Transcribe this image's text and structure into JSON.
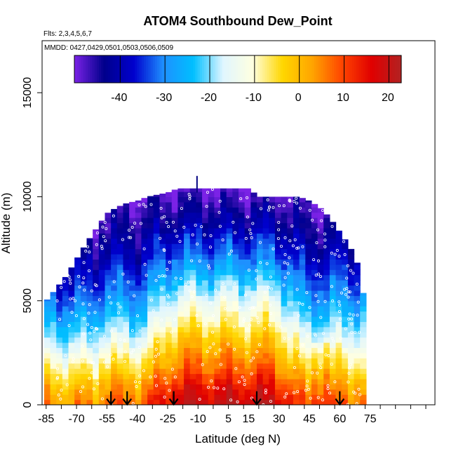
{
  "chart_data": {
    "type": "heatmap",
    "title": "ATOM4 Southbound Dew_Point",
    "flights_note": "Flts: 2,3,4,5,6,7",
    "dates_note": "MMDD: 0427,0429,0501,0503,0506,0509",
    "xlabel": "Latitude (deg N)",
    "ylabel": "Altitude (m)",
    "x_ticks": [
      -85,
      -70,
      -55,
      -40,
      -25,
      -10,
      5,
      15,
      30,
      45,
      60,
      75
    ],
    "x_tick_labels": [
      "-85",
      "-70",
      "-55",
      "-40",
      "-25",
      "-10",
      "5",
      "15",
      "30",
      "45",
      "60",
      "75"
    ],
    "y_ticks": [
      0,
      5000,
      10000,
      15000
    ],
    "y_tick_labels": [
      "0",
      "5000",
      "10000",
      "15000"
    ],
    "xlim": [
      -87,
      107
    ],
    "ylim": [
      0,
      17500
    ],
    "colorbar": {
      "range": [
        -50,
        23
      ],
      "ticks": [
        -40,
        -30,
        -20,
        -10,
        0,
        10,
        20
      ],
      "tick_labels": [
        "-40",
        "-30",
        "-20",
        "-10",
        "0",
        "10",
        "20"
      ],
      "colors": [
        "#7b22e6",
        "#00008b",
        "#0000cd",
        "#1e90ff",
        "#00bfff",
        "#e0f6ff",
        "#ffffe0",
        "#ffd700",
        "#ffa500",
        "#ff4500",
        "#e00000",
        "#b22222"
      ]
    },
    "envelope": {
      "lat": [
        -85,
        -80,
        -75,
        -70,
        -65,
        -60,
        -55,
        -50,
        -45,
        -40,
        -35,
        -30,
        -25,
        -20,
        -15,
        -10,
        -5,
        0,
        5,
        10,
        15,
        20,
        25,
        30,
        35,
        40,
        45,
        50,
        55,
        60,
        65,
        70,
        72
      ],
      "top_alt": [
        5000,
        5600,
        6200,
        7000,
        7800,
        8500,
        9200,
        9500,
        9700,
        9800,
        10000,
        10100,
        10200,
        10400,
        10400,
        10400,
        10400,
        10400,
        10400,
        10400,
        10400,
        10000,
        10000,
        10000,
        10000,
        10000,
        9800,
        9500,
        9000,
        8300,
        7600,
        6500,
        5000
      ]
    },
    "dewpoint_profile": {
      "alt_km": [
        0,
        1,
        2,
        3,
        4,
        5,
        6,
        7,
        8,
        9,
        10
      ],
      "tropic_lat_range": [
        -20,
        28
      ],
      "values_alt_km_0_to_10_tropics": [
        21,
        14,
        6,
        0,
        -8,
        -14,
        -22,
        -30,
        -36,
        -42,
        -47
      ],
      "values_alt_km_0_to_10_midlat": [
        8,
        2,
        -6,
        -14,
        -21,
        -28,
        -33,
        -38,
        -42,
        -46,
        -48
      ]
    },
    "sampling_markers_lat": [
      -53,
      -45,
      -22,
      19,
      60
    ]
  }
}
